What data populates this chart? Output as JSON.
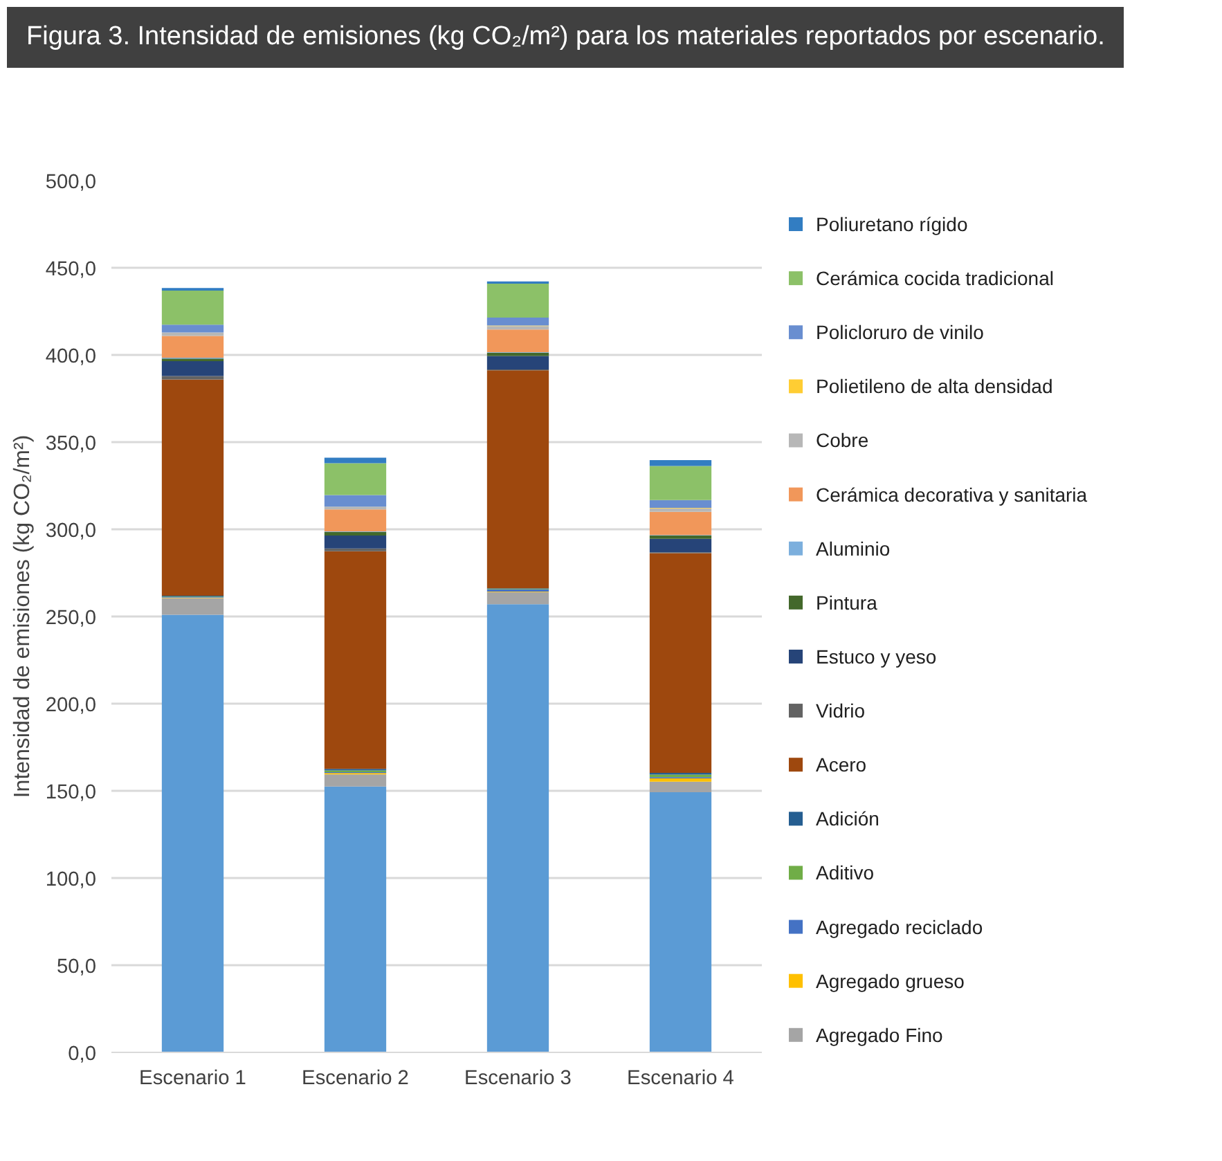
{
  "chart_data": {
    "type": "bar",
    "stacked": true,
    "title": "Figura 3. Intensidad de emisiones (kg CO₂/m²) para los materiales reportados por escenario.",
    "ylabel": "Intensidad de emisiones (kg CO₂/m²)",
    "categories": [
      "Escenario 1",
      "Escenario 2",
      "Escenario 3",
      "Escenario 4"
    ],
    "ylim": [
      0,
      500
    ],
    "yticks": [
      {
        "value": 0,
        "label": "0,0"
      },
      {
        "value": 50,
        "label": "50,0"
      },
      {
        "value": 100,
        "label": "100,0"
      },
      {
        "value": 150,
        "label": "150,0"
      },
      {
        "value": 200,
        "label": "200,0"
      },
      {
        "value": 250,
        "label": "250,0"
      },
      {
        "value": 300,
        "label": "300,0"
      },
      {
        "value": 350,
        "label": "350,0"
      },
      {
        "value": 400,
        "label": "400,0"
      },
      {
        "value": 450,
        "label": "450,0"
      },
      {
        "value": 500,
        "label": "500,0"
      }
    ],
    "grid": "y",
    "legend": "right",
    "series": [
      {
        "color": "#5b9bd5",
        "values": [
          251,
          152.5,
          257,
          149.2
        ]
      },
      {
        "name": "Agregado Fino",
        "color": "#a5a5a5",
        "values": [
          9.5,
          6.9,
          7,
          6.1
        ]
      },
      {
        "name": "Agregado grueso",
        "color": "#ffc000",
        "values": [
          0.3,
          0.8,
          0.3,
          1.8
        ]
      },
      {
        "name": "Agregado reciclado",
        "color": "#4472c4",
        "values": [
          0.3,
          0.5,
          1.3,
          0.7
        ]
      },
      {
        "name": "Aditivo",
        "color": "#70ad47",
        "values": [
          0.3,
          1.0,
          0.3,
          1.5
        ]
      },
      {
        "name": "Adición",
        "color": "#255e91",
        "values": [
          0.5,
          0.9,
          0.3,
          1.0
        ]
      },
      {
        "name": "Acero",
        "color": "#9e480e",
        "values": [
          124,
          124.8,
          125,
          126
        ]
      },
      {
        "name": "Vidrio",
        "color": "#636363",
        "values": [
          2,
          1.6,
          0.5,
          0.5
        ]
      },
      {
        "name": "Estuco y yeso",
        "color": "#264478",
        "values": [
          8.5,
          7.4,
          7.7,
          7.7
        ]
      },
      {
        "name": "Pintura",
        "color": "#43682b",
        "values": [
          1.5,
          2.1,
          1.9,
          1.9
        ]
      },
      {
        "name": "Aluminio",
        "color": "#7cafdd",
        "values": [
          0.5,
          0.3,
          0.3,
          0.3
        ]
      },
      {
        "name": "Cerámica decorativa y sanitaria",
        "color": "#f1975a",
        "values": [
          12.5,
          12.6,
          13,
          13.3
        ]
      },
      {
        "name": "Cobre",
        "color": "#b7b7b7",
        "values": [
          2,
          1.6,
          2,
          2
        ]
      },
      {
        "name": "Polietileno de alta densidad",
        "color": "#ffcd33",
        "values": [
          null,
          null,
          0.3,
          0.3
        ]
      },
      {
        "name": "Policloruro de vinilo",
        "color": "#698ed0",
        "values": [
          4.5,
          6.6,
          4.5,
          4.5
        ]
      },
      {
        "name": "Cerámica cocida tradicional",
        "color": "#8cc168",
        "values": [
          19.5,
          18.3,
          19.5,
          19.5
        ]
      },
      {
        "name": "Poliuretano rígido",
        "color": "#327dc2",
        "values": [
          1.5,
          3.2,
          1.3,
          3.4
        ]
      }
    ]
  }
}
